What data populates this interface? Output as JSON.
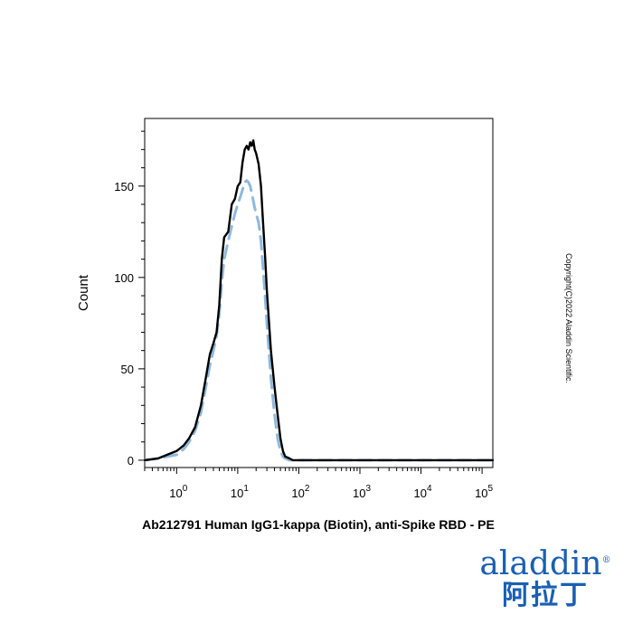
{
  "chart_data": {
    "type": "line",
    "title": "",
    "xlabel": "Ab212791 Human IgG1-kappa (Biotin), anti-Spike RBD - PE",
    "ylabel": "Count",
    "xscale": "log",
    "xlim": [
      0.3,
      150000
    ],
    "ylim": [
      -4,
      187
    ],
    "x_ticks": [
      {
        "value": 1,
        "base": "10",
        "exp": "0"
      },
      {
        "value": 10,
        "base": "10",
        "exp": "1"
      },
      {
        "value": 100,
        "base": "10",
        "exp": "2"
      },
      {
        "value": 1000,
        "base": "10",
        "exp": "3"
      },
      {
        "value": 10000,
        "base": "10",
        "exp": "4"
      },
      {
        "value": 100000,
        "base": "10",
        "exp": "5"
      }
    ],
    "y_ticks": [
      "0",
      "50",
      "100",
      "150"
    ],
    "grid": false,
    "legend": "none",
    "series": [
      {
        "style": "solid",
        "color": "#000000",
        "x": [
          0.3,
          0.5,
          0.7,
          1.0,
          1.3,
          1.6,
          2.0,
          2.5,
          3.0,
          3.5,
          4.0,
          4.5,
          5.0,
          5.5,
          6.0,
          7.0,
          8.0,
          9.0,
          10.0,
          11.0,
          12.0,
          13.0,
          14.0,
          15.0,
          16.0,
          17.0,
          18.0,
          19.0,
          20.0,
          21.0,
          22.0,
          24.0,
          26.0,
          28.0,
          30.0,
          35.0,
          40.0,
          45.0,
          50.0,
          55.0,
          60.0,
          70.0,
          80.0,
          100.0,
          1000.0,
          10000.0,
          100000.0,
          150000.0
        ],
        "y": [
          0,
          1,
          3,
          5,
          8,
          12,
          18,
          30,
          45,
          58,
          64,
          70,
          85,
          110,
          122,
          125,
          140,
          143,
          150,
          152,
          163,
          170,
          172,
          170,
          174,
          172,
          175,
          170,
          168,
          165,
          162,
          150,
          130,
          112,
          93,
          60,
          40,
          25,
          12,
          5,
          2,
          1,
          0,
          0,
          0,
          0,
          0,
          0
        ]
      },
      {
        "style": "dashed",
        "color": "#8fb9dc",
        "x": [
          0.3,
          0.5,
          0.7,
          1.0,
          1.3,
          1.6,
          2.0,
          2.5,
          3.0,
          3.5,
          4.0,
          4.5,
          5.0,
          5.5,
          6.0,
          7.0,
          8.0,
          9.0,
          10.0,
          11.0,
          12.0,
          13.0,
          14.0,
          15.0,
          16.0,
          17.0,
          18.0,
          19.0,
          20.0,
          22.0,
          24.0,
          26.0,
          28.0,
          30.0,
          35.0,
          40.0,
          45.0,
          50.0,
          55.0,
          60.0,
          70.0,
          80.0,
          100.0,
          1000.0,
          10000.0,
          100000.0,
          150000.0
        ],
        "y": [
          0,
          1,
          2,
          3,
          6,
          10,
          16,
          26,
          40,
          52,
          60,
          68,
          80,
          98,
          110,
          120,
          128,
          135,
          140,
          144,
          148,
          152,
          153,
          152,
          150,
          146,
          142,
          138,
          135,
          130,
          120,
          105,
          90,
          75,
          45,
          25,
          12,
          5,
          2,
          1,
          0,
          0,
          0,
          0,
          0,
          0,
          0
        ]
      }
    ]
  },
  "copyright": "Copyright(C)2022 Aladdin Scientific.",
  "logo": {
    "text": "aladdin",
    "registered": "®",
    "chinese": "阿拉丁"
  }
}
